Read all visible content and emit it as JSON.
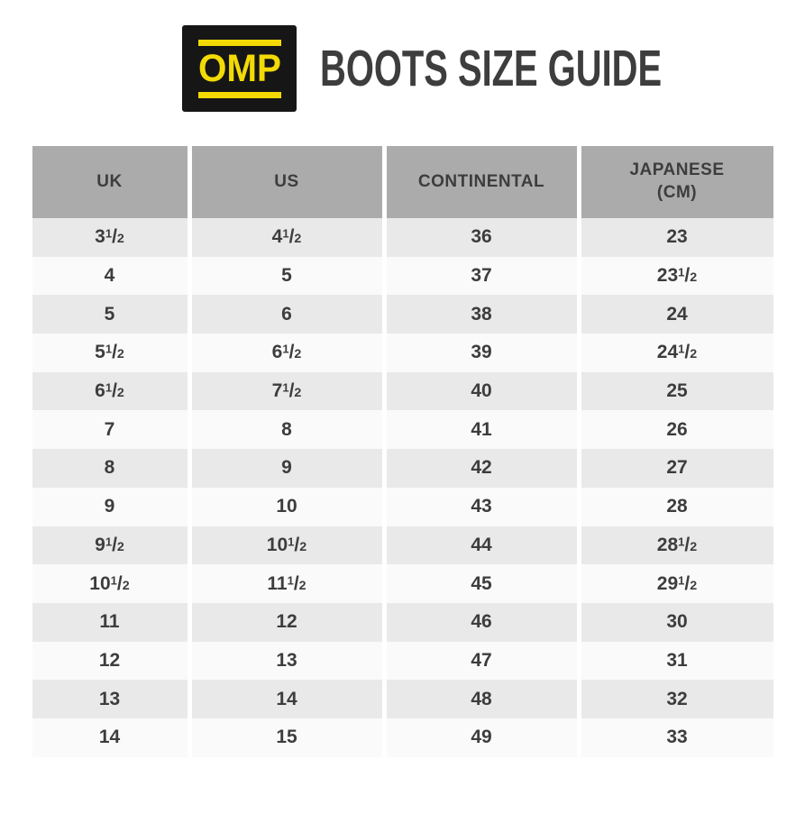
{
  "header": {
    "logo_text": "OMP",
    "title": "BOOTS SIZE GUIDE"
  },
  "colors": {
    "logo_bg": "#161616",
    "logo_yellow": "#f3da05",
    "header_gray": "#ababab",
    "row_light": "#e9e9e9",
    "row_white": "#fafafa",
    "text": "#3d3d3d"
  },
  "chart_data": {
    "type": "table",
    "title": "BOOTS SIZE GUIDE",
    "columns": [
      "UK",
      "US",
      "CONTINENTAL",
      "JAPANESE (CM)"
    ],
    "column_labels": [
      [
        "UK"
      ],
      [
        "US"
      ],
      [
        "CONTINENTAL"
      ],
      [
        "JAPANESE",
        "(CM)"
      ]
    ],
    "rows": [
      [
        "3½",
        "4½",
        "36",
        "23"
      ],
      [
        "4",
        "5",
        "37",
        "23½"
      ],
      [
        "5",
        "6",
        "38",
        "24"
      ],
      [
        "5½",
        "6½",
        "39",
        "24½"
      ],
      [
        "6½",
        "7½",
        "40",
        "25"
      ],
      [
        "7",
        "8",
        "41",
        "26"
      ],
      [
        "8",
        "9",
        "42",
        "27"
      ],
      [
        "9",
        "10",
        "43",
        "28"
      ],
      [
        "9½",
        "10½",
        "44",
        "28½"
      ],
      [
        "10½",
        "11½",
        "45",
        "29½"
      ],
      [
        "11",
        "12",
        "46",
        "30"
      ],
      [
        "12",
        "13",
        "47",
        "31"
      ],
      [
        "13",
        "14",
        "48",
        "32"
      ],
      [
        "14",
        "15",
        "49",
        "33"
      ]
    ]
  }
}
